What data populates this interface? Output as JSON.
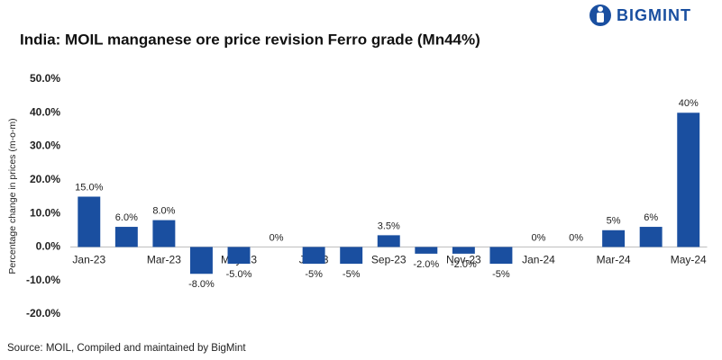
{
  "brand": "BIGMINT",
  "source": "Source: MOIL, Compiled and maintained by BigMint",
  "chart_data": {
    "type": "bar",
    "title": "India: MOIL manganese ore price revision Ferro grade (Mn44%)",
    "y_label": "Percentage change in prices (m-o-m)",
    "categories": [
      "Jan-23",
      null,
      "Mar-23",
      null,
      "May-23",
      null,
      "Jul-23",
      null,
      "Sep-23",
      null,
      "Nov-23",
      null,
      "Jan-24",
      null,
      "Mar-24",
      null,
      "May-24"
    ],
    "values": [
      15,
      6,
      8,
      -8,
      -5,
      0,
      -5,
      -5,
      3.5,
      -2,
      -2,
      -5,
      0,
      0,
      5,
      6,
      40
    ],
    "value_labels": [
      "15.0%",
      "6.0%",
      "8.0%",
      "-8.0%",
      "-5.0%",
      "0%",
      "-5%",
      "-5%",
      "3.5%",
      "-2.0%",
      "-2.0%",
      "-5%",
      "0%",
      "0%",
      "5%",
      "6%",
      "40%"
    ],
    "color": "#1a4fa0",
    "ylim": [
      -20,
      50
    ],
    "yticks": [
      {
        "value": -20,
        "label": "-20.0%"
      },
      {
        "value": -10,
        "label": "-10.0%"
      },
      {
        "value": 0,
        "label": "0.0%"
      },
      {
        "value": 10,
        "label": "10.0%"
      },
      {
        "value": 20,
        "label": "20.0%"
      },
      {
        "value": 30,
        "label": "30.0%"
      },
      {
        "value": 40,
        "label": "40.0%"
      },
      {
        "value": 50,
        "label": "50.0%"
      }
    ],
    "grid": false
  }
}
